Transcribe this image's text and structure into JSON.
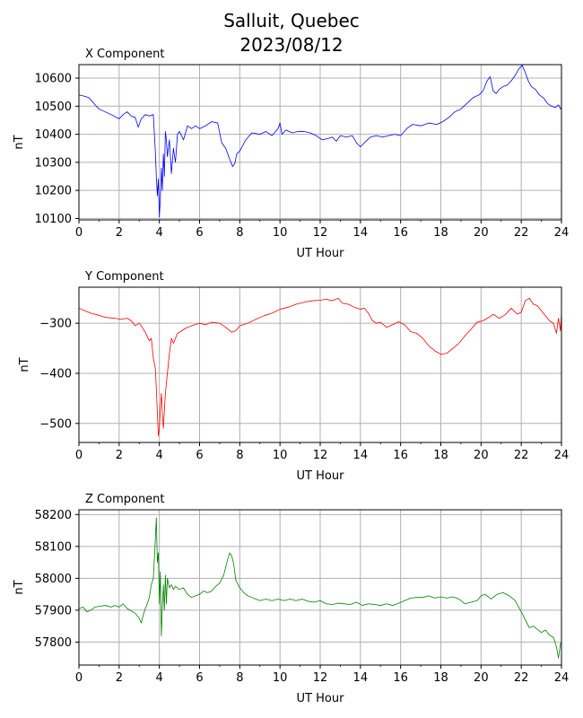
{
  "figure": {
    "title_line1": "Salluit, Quebec",
    "title_line2": "2023/08/12"
  },
  "chart_data": [
    {
      "type": "line",
      "title": "X Component",
      "xlabel": "UT Hour",
      "ylabel": "nT",
      "xlim": [
        0,
        24
      ],
      "ylim": [
        10095,
        10648
      ],
      "xticks": [
        0,
        2,
        4,
        6,
        8,
        10,
        12,
        14,
        16,
        18,
        20,
        22,
        24
      ],
      "yticks": [
        10100,
        10200,
        10300,
        10400,
        10500,
        10600
      ],
      "grid": true,
      "color": "#0000ff",
      "series": [
        {
          "x": [
            0,
            0.3,
            0.5,
            0.8,
            1.0,
            1.3,
            1.6,
            2.0,
            2.2,
            2.4,
            2.6,
            2.8,
            2.95,
            3.1,
            3.3,
            3.5,
            3.7,
            3.8,
            3.85,
            3.9,
            3.95,
            4.0,
            4.05,
            4.1,
            4.15,
            4.2,
            4.25,
            4.3,
            4.35,
            4.4,
            4.5,
            4.6,
            4.7,
            4.8,
            4.9,
            5.0,
            5.2,
            5.4,
            5.6,
            5.8,
            6.0,
            6.3,
            6.6,
            6.9,
            7.1,
            7.3,
            7.5,
            7.65,
            7.75,
            7.85,
            8.0,
            8.3,
            8.6,
            9.0,
            9.3,
            9.6,
            9.9,
            10.0,
            10.1,
            10.3,
            10.6,
            10.9,
            11.2,
            11.5,
            11.8,
            12.1,
            12.4,
            12.6,
            12.8,
            13.0,
            13.3,
            13.6,
            13.8,
            14.0,
            14.2,
            14.5,
            14.8,
            15.1,
            15.4,
            15.7,
            16.0,
            16.3,
            16.6,
            17.0,
            17.4,
            17.8,
            18.1,
            18.4,
            18.7,
            19.0,
            19.3,
            19.6,
            19.9,
            20.1,
            20.3,
            20.45,
            20.6,
            20.75,
            20.9,
            21.1,
            21.3,
            21.5,
            21.7,
            21.9,
            22.05,
            22.2,
            22.35,
            22.5,
            22.7,
            22.9,
            23.1,
            23.3,
            23.5,
            23.7,
            23.85,
            23.95,
            24.0
          ],
          "y": [
            10540,
            10535,
            10530,
            10505,
            10490,
            10480,
            10470,
            10455,
            10470,
            10480,
            10465,
            10460,
            10425,
            10455,
            10470,
            10465,
            10470,
            10340,
            10250,
            10180,
            10240,
            10105,
            10170,
            10280,
            10200,
            10330,
            10250,
            10410,
            10380,
            10320,
            10380,
            10260,
            10350,
            10300,
            10400,
            10410,
            10380,
            10430,
            10420,
            10430,
            10420,
            10430,
            10445,
            10440,
            10370,
            10350,
            10310,
            10285,
            10295,
            10330,
            10340,
            10380,
            10405,
            10400,
            10410,
            10395,
            10420,
            10440,
            10400,
            10415,
            10405,
            10410,
            10410,
            10405,
            10395,
            10380,
            10385,
            10390,
            10375,
            10395,
            10390,
            10395,
            10370,
            10355,
            10370,
            10390,
            10395,
            10390,
            10395,
            10400,
            10395,
            10420,
            10435,
            10430,
            10440,
            10435,
            10445,
            10460,
            10480,
            10490,
            10510,
            10530,
            10540,
            10555,
            10590,
            10605,
            10555,
            10545,
            10560,
            10570,
            10575,
            10590,
            10610,
            10635,
            10645,
            10620,
            10590,
            10570,
            10560,
            10540,
            10530,
            10510,
            10500,
            10495,
            10505,
            10490,
            10495
          ]
        }
      ]
    },
    {
      "type": "line",
      "title": "Y Component",
      "xlabel": "UT Hour",
      "ylabel": "nT",
      "xlim": [
        0,
        24
      ],
      "ylim": [
        -538,
        -228
      ],
      "xticks": [
        0,
        2,
        4,
        6,
        8,
        10,
        12,
        14,
        16,
        18,
        20,
        22,
        24
      ],
      "yticks": [
        -500,
        -400,
        -300
      ],
      "grid": true,
      "color": "#ff0000",
      "series": [
        {
          "x": [
            0,
            0.3,
            0.6,
            0.9,
            1.2,
            1.5,
            1.8,
            2.1,
            2.4,
            2.6,
            2.8,
            3.0,
            3.1,
            3.3,
            3.5,
            3.6,
            3.7,
            3.8,
            3.85,
            3.9,
            3.95,
            4.0,
            4.05,
            4.1,
            4.15,
            4.2,
            4.3,
            4.4,
            4.5,
            4.6,
            4.7,
            4.8,
            4.9,
            5.0,
            5.3,
            5.6,
            6.0,
            6.3,
            6.6,
            7.0,
            7.3,
            7.6,
            7.8,
            8.0,
            8.4,
            8.8,
            9.2,
            9.6,
            10.0,
            10.4,
            10.8,
            11.2,
            11.6,
            12.0,
            12.3,
            12.6,
            12.9,
            13.1,
            13.4,
            13.7,
            14.0,
            14.2,
            14.4,
            14.6,
            14.8,
            15.0,
            15.3,
            15.6,
            15.9,
            16.2,
            16.5,
            16.8,
            17.1,
            17.4,
            17.7,
            18.0,
            18.3,
            18.6,
            18.9,
            19.2,
            19.5,
            19.8,
            20.1,
            20.4,
            20.6,
            20.9,
            21.2,
            21.5,
            21.8,
            22.0,
            22.2,
            22.4,
            22.6,
            22.8,
            23.0,
            23.2,
            23.4,
            23.6,
            23.75,
            23.85,
            23.95,
            24.0
          ],
          "y": [
            -270,
            -275,
            -280,
            -283,
            -287,
            -289,
            -290,
            -292,
            -290,
            -295,
            -305,
            -300,
            -305,
            -318,
            -335,
            -330,
            -370,
            -390,
            -430,
            -480,
            -525,
            -510,
            -470,
            -440,
            -480,
            -510,
            -440,
            -400,
            -360,
            -330,
            -340,
            -330,
            -320,
            -318,
            -310,
            -305,
            -300,
            -303,
            -298,
            -300,
            -308,
            -318,
            -315,
            -305,
            -300,
            -292,
            -285,
            -280,
            -272,
            -268,
            -262,
            -258,
            -255,
            -254,
            -252,
            -255,
            -250,
            -260,
            -262,
            -268,
            -272,
            -270,
            -280,
            -295,
            -300,
            -298,
            -308,
            -303,
            -297,
            -303,
            -317,
            -320,
            -330,
            -345,
            -355,
            -362,
            -360,
            -350,
            -340,
            -325,
            -312,
            -298,
            -295,
            -288,
            -282,
            -290,
            -283,
            -270,
            -282,
            -278,
            -255,
            -250,
            -262,
            -265,
            -275,
            -285,
            -295,
            -300,
            -320,
            -290,
            -315,
            -280
          ]
        }
      ]
    },
    {
      "type": "line",
      "title": "Z Component",
      "xlabel": "UT Hour",
      "ylabel": "nT",
      "xlim": [
        0,
        24
      ],
      "ylim": [
        57728,
        58215
      ],
      "xticks": [
        0,
        2,
        4,
        6,
        8,
        10,
        12,
        14,
        16,
        18,
        20,
        22,
        24
      ],
      "yticks": [
        57800,
        57900,
        58000,
        58100,
        58200
      ],
      "grid": true,
      "color": "#008000",
      "series": [
        {
          "x": [
            0,
            0.2,
            0.4,
            0.6,
            0.8,
            1.0,
            1.3,
            1.6,
            1.8,
            2.0,
            2.2,
            2.4,
            2.6,
            2.8,
            3.0,
            3.1,
            3.2,
            3.3,
            3.4,
            3.5,
            3.6,
            3.7,
            3.75,
            3.8,
            3.85,
            3.9,
            3.95,
            4.0,
            4.05,
            4.1,
            4.15,
            4.2,
            4.25,
            4.3,
            4.35,
            4.4,
            4.5,
            4.6,
            4.7,
            4.8,
            5.0,
            5.2,
            5.4,
            5.6,
            5.8,
            6.0,
            6.2,
            6.4,
            6.6,
            6.8,
            7.0,
            7.2,
            7.4,
            7.5,
            7.6,
            7.7,
            7.8,
            8.0,
            8.2,
            8.4,
            8.6,
            8.8,
            9.0,
            9.3,
            9.6,
            9.9,
            10.2,
            10.5,
            10.8,
            11.1,
            11.4,
            11.7,
            12.0,
            12.3,
            12.6,
            12.9,
            13.2,
            13.5,
            13.8,
            14.1,
            14.4,
            14.7,
            15.0,
            15.3,
            15.6,
            15.9,
            16.2,
            16.5,
            16.8,
            17.1,
            17.4,
            17.7,
            18.0,
            18.3,
            18.6,
            18.9,
            19.2,
            19.5,
            19.8,
            20.0,
            20.2,
            20.5,
            20.8,
            21.1,
            21.4,
            21.7,
            22.0,
            22.2,
            22.4,
            22.6,
            22.8,
            23.0,
            23.2,
            23.4,
            23.6,
            23.75,
            23.85,
            23.95,
            24.0
          ],
          "y": [
            57905,
            57910,
            57895,
            57900,
            57910,
            57912,
            57915,
            57910,
            57915,
            57910,
            57920,
            57905,
            57898,
            57890,
            57875,
            57860,
            57885,
            57905,
            57920,
            57940,
            57980,
            58000,
            58060,
            58120,
            58190,
            58050,
            58080,
            57920,
            58020,
            57820,
            57910,
            57980,
            57900,
            58010,
            57920,
            58000,
            57970,
            57980,
            57965,
            57975,
            57965,
            57970,
            57950,
            57940,
            57945,
            57950,
            57960,
            57955,
            57960,
            57975,
            57985,
            58010,
            58060,
            58080,
            58070,
            58045,
            57995,
            57970,
            57955,
            57945,
            57940,
            57935,
            57930,
            57935,
            57930,
            57935,
            57930,
            57935,
            57930,
            57935,
            57928,
            57925,
            57930,
            57920,
            57918,
            57922,
            57920,
            57918,
            57925,
            57915,
            57920,
            57918,
            57915,
            57920,
            57915,
            57922,
            57930,
            57938,
            57940,
            57940,
            57945,
            57938,
            57942,
            57938,
            57942,
            57935,
            57920,
            57925,
            57930,
            57945,
            57950,
            57935,
            57950,
            57955,
            57945,
            57930,
            57895,
            57870,
            57845,
            57850,
            57840,
            57830,
            57838,
            57822,
            57815,
            57785,
            57750,
            57795,
            57800
          ]
        }
      ]
    }
  ]
}
